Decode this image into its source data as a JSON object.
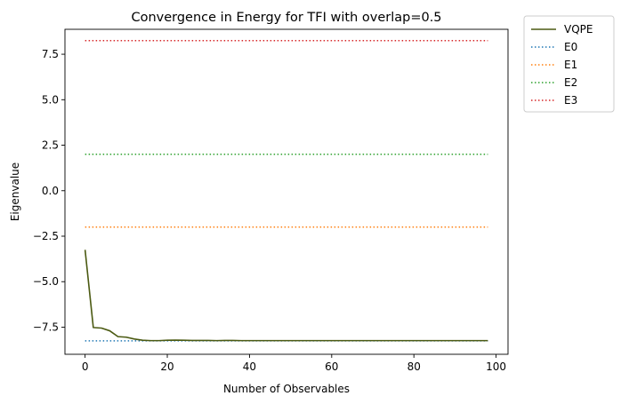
{
  "chart_data": {
    "type": "line",
    "title": "Convergence in Energy for TFI with overlap=0.5",
    "xlabel": "Number of Observables",
    "ylabel": "Eigenvalue",
    "xlim": [
      -4.9,
      102.9
    ],
    "ylim": [
      -8.99,
      8.87
    ],
    "xticks": [
      0,
      20,
      40,
      60,
      80,
      100
    ],
    "yticks": [
      -7.5,
      -5.0,
      -2.5,
      0.0,
      2.5,
      5.0,
      7.5
    ],
    "xtick_labels": [
      "0",
      "20",
      "40",
      "60",
      "80",
      "100"
    ],
    "ytick_labels": [
      "−7.5",
      "−5.0",
      "−2.5",
      "0.0",
      "2.5",
      "5.0",
      "7.5"
    ],
    "grid": false,
    "legend_position": "outside-top-right",
    "series": [
      {
        "name": "VQPE",
        "style": "solid",
        "color": "#4b5a12",
        "x": [
          0,
          2,
          4,
          6,
          8,
          10,
          12,
          14,
          16,
          18,
          20,
          22,
          24,
          26,
          28,
          30,
          32,
          34,
          36,
          38,
          40,
          42,
          44,
          46,
          48,
          50,
          52,
          54,
          56,
          58,
          60,
          62,
          64,
          66,
          68,
          70,
          72,
          74,
          76,
          78,
          80,
          82,
          84,
          86,
          88,
          90,
          92,
          94,
          96,
          98
        ],
        "y": [
          -3.25,
          -7.52,
          -7.55,
          -7.7,
          -8.02,
          -8.05,
          -8.15,
          -8.22,
          -8.24,
          -8.24,
          -8.22,
          -8.21,
          -8.22,
          -8.23,
          -8.23,
          -8.23,
          -8.24,
          -8.23,
          -8.23,
          -8.24,
          -8.24,
          -8.24,
          -8.24,
          -8.24,
          -8.24,
          -8.24,
          -8.24,
          -8.24,
          -8.24,
          -8.24,
          -8.24,
          -8.24,
          -8.24,
          -8.24,
          -8.24,
          -8.24,
          -8.24,
          -8.24,
          -8.24,
          -8.24,
          -8.24,
          -8.24,
          -8.24,
          -8.24,
          -8.24,
          -8.24,
          -8.24,
          -8.24,
          -8.24,
          -8.24
        ]
      },
      {
        "name": "E0",
        "style": "dotted",
        "color": "#1f77b4",
        "x": [
          0,
          98
        ],
        "y": [
          -8.25,
          -8.25
        ]
      },
      {
        "name": "E1",
        "style": "dotted",
        "color": "#ff7f0e",
        "x": [
          0,
          98
        ],
        "y": [
          -2.0,
          -2.0
        ]
      },
      {
        "name": "E2",
        "style": "dotted",
        "color": "#2ca02c",
        "x": [
          0,
          98
        ],
        "y": [
          2.0,
          2.0
        ]
      },
      {
        "name": "E3",
        "style": "dotted",
        "color": "#d62728",
        "x": [
          0,
          98
        ],
        "y": [
          8.25,
          8.25
        ]
      }
    ]
  }
}
